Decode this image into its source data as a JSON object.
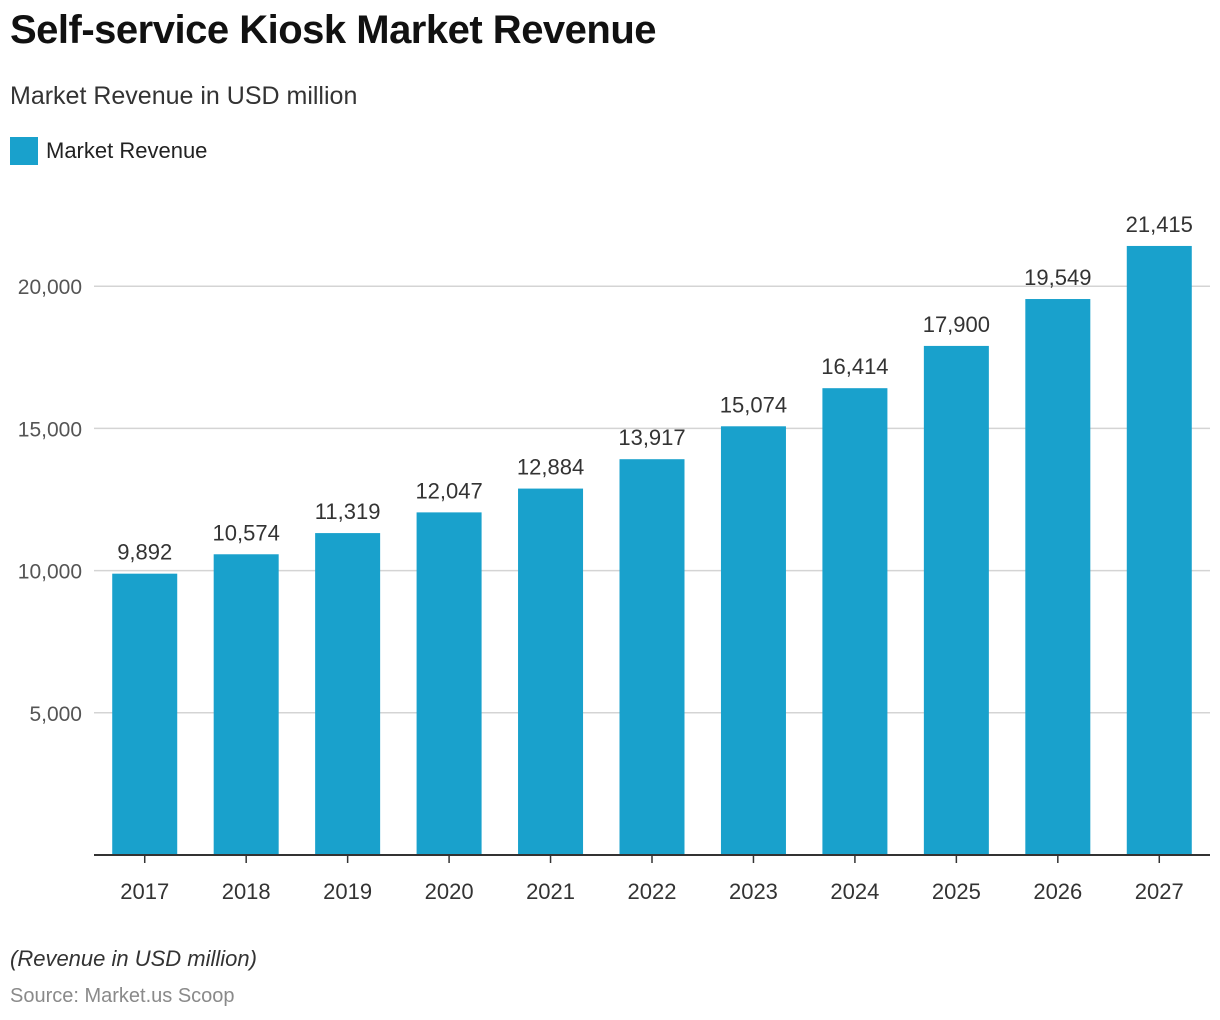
{
  "header": {
    "title": "Self-service Kiosk Market Revenue",
    "subtitle": "Market Revenue in USD million"
  },
  "legend": {
    "items": [
      {
        "label": "Market Revenue",
        "color": "#19A1CC"
      }
    ]
  },
  "footer": {
    "note": "(Revenue in USD million)",
    "source": "Source: Market.us Scoop"
  },
  "chart_data": {
    "type": "bar",
    "title": "Self-service Kiosk Market Revenue",
    "subtitle": "Market Revenue in USD million",
    "categories": [
      "2017",
      "2018",
      "2019",
      "2020",
      "2021",
      "2022",
      "2023",
      "2024",
      "2025",
      "2026",
      "2027"
    ],
    "series": [
      {
        "name": "Market Revenue",
        "color": "#19A1CC",
        "values": [
          9892,
          10574,
          11319,
          12047,
          12884,
          13917,
          15074,
          16414,
          17900,
          19549,
          21415
        ],
        "labels": [
          "9,892",
          "10,574",
          "11,319",
          "12,047",
          "12,884",
          "13,917",
          "15,074",
          "16,414",
          "17,900",
          "19,549",
          "21,415"
        ]
      }
    ],
    "xlabel": "",
    "ylabel": "",
    "ylim": [
      0,
      22000
    ],
    "yticks": [
      5000,
      10000,
      15000,
      20000
    ],
    "ytick_labels": [
      "5,000",
      "10,000",
      "15,000",
      "20,000"
    ],
    "grid": true,
    "legend_position": "top-left"
  }
}
